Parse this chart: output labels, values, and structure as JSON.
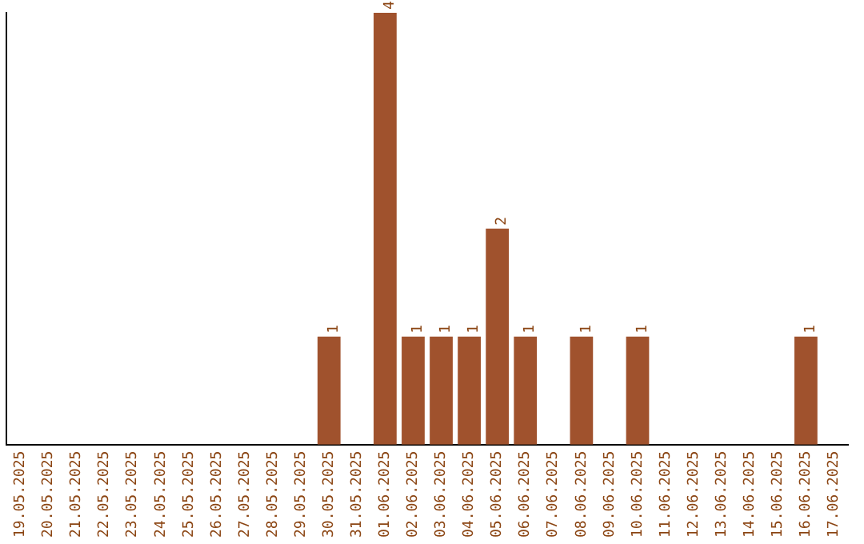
{
  "chart_data": {
    "type": "bar",
    "categories": [
      "19.05.2025",
      "20.05.2025",
      "21.05.2025",
      "22.05.2025",
      "23.05.2025",
      "24.05.2025",
      "25.05.2025",
      "26.05.2025",
      "27.05.2025",
      "28.05.2025",
      "29.05.2025",
      "30.05.2025",
      "31.05.2025",
      "01.06.2025",
      "02.06.2025",
      "03.06.2025",
      "04.06.2025",
      "05.06.2025",
      "06.06.2025",
      "07.06.2025",
      "08.06.2025",
      "09.06.2025",
      "10.06.2025",
      "11.06.2025",
      "12.06.2025",
      "13.06.2025",
      "14.06.2025",
      "15.06.2025",
      "16.06.2025",
      "17.06.2025"
    ],
    "values": [
      0,
      0,
      0,
      0,
      0,
      0,
      0,
      0,
      0,
      0,
      0,
      1,
      0,
      4,
      1,
      1,
      1,
      2,
      1,
      0,
      1,
      0,
      1,
      0,
      0,
      0,
      0,
      0,
      1,
      0
    ],
    "value_labels": [
      null,
      null,
      null,
      null,
      null,
      null,
      null,
      null,
      null,
      null,
      null,
      "1",
      null,
      "4",
      "1",
      "1",
      "1",
      "2",
      "1",
      null,
      "1",
      null,
      "1",
      null,
      null,
      null,
      null,
      null,
      "1",
      null
    ],
    "color": "#a0522d",
    "grid": false,
    "legend": false,
    "tick_labels": "x"
  }
}
